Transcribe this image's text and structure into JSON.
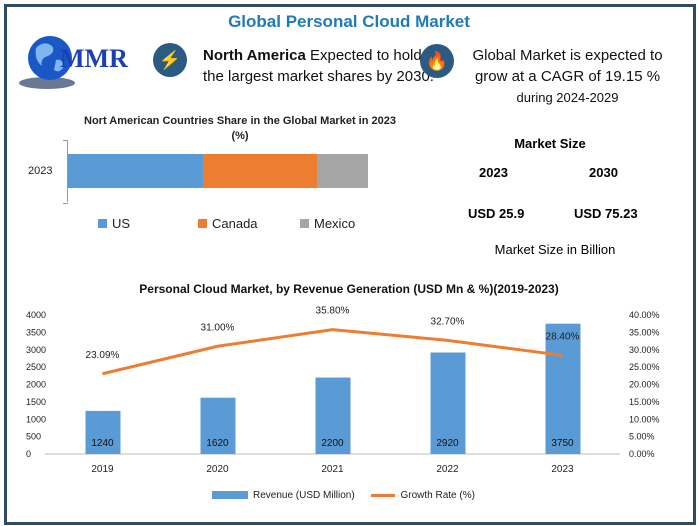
{
  "header": {
    "title": "Global Personal Cloud Market",
    "logo_text": "MMR",
    "highlight1": {
      "icon": "lightning-icon",
      "bold": "North America",
      "line1_rest": " Expected to hold",
      "line2": "the largest market shares by 2030."
    },
    "highlight2": {
      "icon": "flame-icon",
      "line1": "Global Market is expected to",
      "line2": "grow at a CAGR of 19.15 %",
      "line3": "during 2024-2029"
    }
  },
  "market_size": {
    "title": "Market Size",
    "years": [
      "2023",
      "2030"
    ],
    "values": [
      "USD 25.9",
      "USD 75.23"
    ],
    "unit_note": "Market Size in Billion"
  },
  "colors": {
    "us": "#5b9bd5",
    "canada": "#ed7d31",
    "mexico": "#a5a5a5",
    "revenue": "#5b9bd5",
    "growth": "#ed7d31",
    "frame": "#2f4a63",
    "title": "#1f7ab8"
  },
  "chart_data": [
    {
      "type": "bar",
      "orientation": "horizontal-stacked",
      "title": "Nort American Countries Share in the Global Market in 2023 (%)",
      "categories": [
        "2023"
      ],
      "series": [
        {
          "name": "US",
          "values": [
            45
          ]
        },
        {
          "name": "Canada",
          "values": [
            38
          ]
        },
        {
          "name": "Mexico",
          "values": [
            17
          ]
        }
      ],
      "legend": "bottom"
    },
    {
      "type": "bar",
      "combo": "bar+line",
      "title": "Personal Cloud Market, by Revenue Generation (USD Mn & %)(2019-2023)",
      "categories": [
        "2019",
        "2020",
        "2021",
        "2022",
        "2023"
      ],
      "series": [
        {
          "name": "Revenue (USD Million)",
          "type": "bar",
          "axis": "left",
          "values": [
            1240,
            1620,
            2200,
            2920,
            3750
          ],
          "labels": [
            "1240",
            "1620",
            "2200",
            "2920",
            "3750"
          ]
        },
        {
          "name": "Growth Rate (%)",
          "type": "line",
          "axis": "right",
          "values": [
            23.09,
            31.0,
            35.8,
            32.7,
            28.4
          ],
          "labels": [
            "23.09%",
            "31.00%",
            "35.80%",
            "32.70%",
            "28.40%"
          ]
        }
      ],
      "ylim": [
        0,
        4000
      ],
      "yticks": [
        "0",
        "500",
        "1000",
        "1500",
        "2000",
        "2500",
        "3000",
        "3500",
        "4000"
      ],
      "y2lim": [
        0,
        40
      ],
      "y2ticks": [
        "0.00%",
        "5.00%",
        "10.00%",
        "15.00%",
        "20.00%",
        "25.00%",
        "30.00%",
        "35.00%",
        "40.00%"
      ],
      "grid": false,
      "legend": "bottom"
    }
  ]
}
